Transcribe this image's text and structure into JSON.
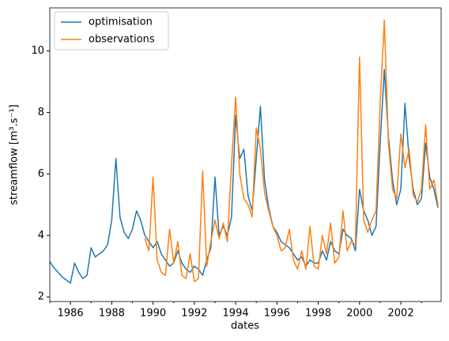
{
  "chart_data": {
    "type": "line",
    "xlabel": "dates",
    "ylabel": "streamflow [m³.s⁻¹]",
    "x": [
      1985.0,
      1985.2,
      1985.4,
      1985.6,
      1985.8,
      1986.0,
      1986.2,
      1986.4,
      1986.6,
      1986.8,
      1987.0,
      1987.2,
      1987.4,
      1987.6,
      1987.8,
      1988.0,
      1988.2,
      1988.4,
      1988.6,
      1988.8,
      1989.0,
      1989.2,
      1989.4,
      1989.6,
      1989.8,
      1990.0,
      1990.2,
      1990.4,
      1990.6,
      1990.8,
      1991.0,
      1991.2,
      1991.4,
      1991.6,
      1991.8,
      1992.0,
      1992.2,
      1992.4,
      1992.6,
      1992.8,
      1993.0,
      1993.2,
      1993.4,
      1993.6,
      1993.8,
      1994.0,
      1994.2,
      1994.4,
      1994.6,
      1994.8,
      1995.0,
      1995.2,
      1995.4,
      1995.6,
      1995.8,
      1996.0,
      1996.2,
      1996.4,
      1996.6,
      1996.8,
      1997.0,
      1997.2,
      1997.4,
      1997.6,
      1997.8,
      1998.0,
      1998.2,
      1998.4,
      1998.6,
      1998.8,
      1999.0,
      1999.2,
      1999.4,
      1999.6,
      1999.8,
      2000.0,
      2000.2,
      2000.4,
      2000.6,
      2000.8,
      2001.0,
      2001.2,
      2001.4,
      2001.6,
      2001.8,
      2002.0,
      2002.2,
      2002.4,
      2002.6,
      2002.8,
      2003.0,
      2003.2,
      2003.4,
      2003.6,
      2003.8
    ],
    "series": [
      {
        "name": "optimisation",
        "color": "#1f77b4",
        "values": [
          3.15,
          2.95,
          2.8,
          2.65,
          2.55,
          2.45,
          3.1,
          2.8,
          2.6,
          2.7,
          3.6,
          3.3,
          3.4,
          3.5,
          3.7,
          4.5,
          6.5,
          4.6,
          4.1,
          3.9,
          4.2,
          4.8,
          4.5,
          4.0,
          3.8,
          3.6,
          3.8,
          3.4,
          3.2,
          3.0,
          3.1,
          3.5,
          3.1,
          2.9,
          2.8,
          3.0,
          2.9,
          2.7,
          3.2,
          3.6,
          5.9,
          4.0,
          4.3,
          4.0,
          4.6,
          7.9,
          6.5,
          6.8,
          5.3,
          4.8,
          6.5,
          8.2,
          5.8,
          4.9,
          4.3,
          4.1,
          3.8,
          3.7,
          3.6,
          3.4,
          3.2,
          3.3,
          3.0,
          3.2,
          3.1,
          3.1,
          3.5,
          3.2,
          3.8,
          3.5,
          3.4,
          4.2,
          4.0,
          3.9,
          3.5,
          5.5,
          4.8,
          4.5,
          4.0,
          4.3,
          7.0,
          9.4,
          7.2,
          5.8,
          5.0,
          5.5,
          8.3,
          6.5,
          5.5,
          5.0,
          5.2,
          7.0,
          5.9,
          5.5,
          4.9
        ]
      },
      {
        "name": "observations",
        "color": "#ff7f0e",
        "values": [
          null,
          null,
          null,
          null,
          null,
          null,
          null,
          null,
          null,
          null,
          null,
          null,
          null,
          null,
          null,
          null,
          null,
          null,
          null,
          null,
          null,
          null,
          null,
          3.9,
          3.5,
          5.9,
          3.2,
          2.8,
          2.7,
          4.2,
          3.1,
          3.8,
          2.7,
          2.6,
          3.4,
          2.5,
          2.6,
          6.1,
          3.0,
          3.8,
          4.5,
          3.9,
          4.4,
          3.8,
          6.3,
          8.5,
          6.0,
          5.2,
          5.0,
          4.6,
          7.5,
          6.8,
          5.4,
          4.8,
          4.3,
          4.0,
          3.5,
          3.6,
          4.2,
          3.2,
          2.9,
          3.5,
          2.9,
          4.3,
          3.0,
          2.9,
          4.0,
          3.4,
          4.4,
          3.1,
          3.3,
          4.8,
          3.5,
          3.8,
          3.7,
          9.8,
          4.5,
          4.1,
          4.5,
          4.8,
          8.3,
          11.0,
          7.0,
          5.5,
          5.2,
          7.3,
          6.2,
          6.8,
          5.3,
          5.1,
          5.5,
          7.6,
          5.5,
          5.8,
          5.0
        ]
      }
    ],
    "xlim": [
      1985.0,
      2003.95
    ],
    "ylim": [
      1.85,
      11.4
    ],
    "xticks": [
      1986,
      1988,
      1990,
      1992,
      1994,
      1996,
      1998,
      2000,
      2002
    ],
    "xminorticks": [
      1985,
      1987,
      1989,
      1991,
      1993,
      1995,
      1997,
      1999,
      2001,
      2003
    ],
    "yticks": [
      2,
      4,
      6,
      8,
      10
    ],
    "legend": "upper left"
  }
}
